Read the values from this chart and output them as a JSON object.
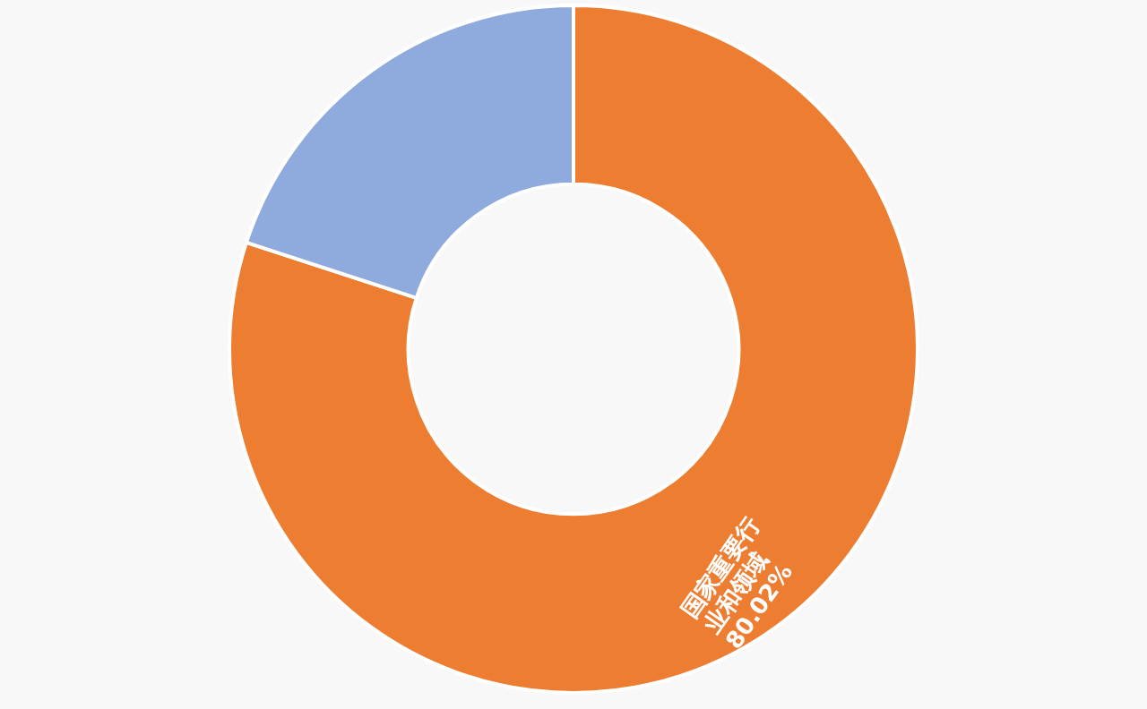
{
  "chart_data": {
    "type": "donut",
    "categories": [
      "国家重要行业和领域",
      null
    ],
    "values": [
      80.02,
      19.98
    ],
    "colors": [
      "#ed7d31",
      "#8faadc"
    ],
    "value_labels": [
      "80.02%",
      null
    ],
    "legend": false
  }
}
